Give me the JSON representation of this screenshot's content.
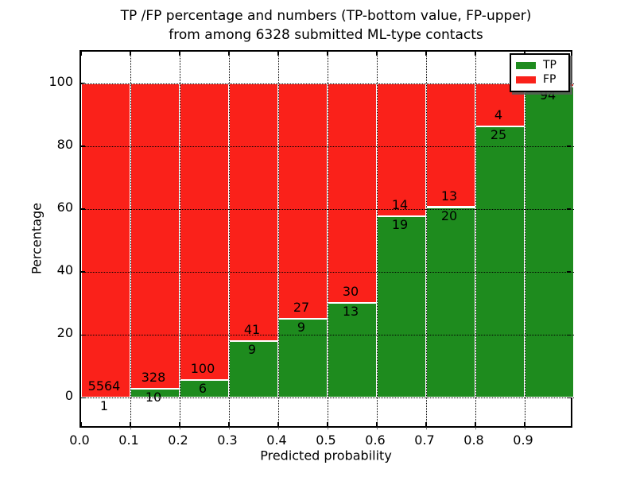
{
  "title_line1": "TP /FP percentage and numbers (TP-bottom value, FP-upper)",
  "title_line2": "from among 6328 submitted ML-type contacts",
  "chart_data": {
    "type": "bar",
    "stacked": true,
    "title": "TP /FP percentage and numbers (TP-bottom value, FP-upper) from among 6328 submitted ML-type contacts",
    "xlabel": "Predicted probability",
    "ylabel": "Percentage",
    "xlim": [
      0.0,
      1.0
    ],
    "ylim": [
      -10,
      110
    ],
    "x_tick_labels": [
      "0.0",
      "0.1",
      "0.2",
      "0.3",
      "0.4",
      "0.5",
      "0.6",
      "0.7",
      "0.8",
      "0.9"
    ],
    "x_tick_values": [
      0.0,
      0.1,
      0.2,
      0.3,
      0.4,
      0.5,
      0.6,
      0.7,
      0.8,
      0.9
    ],
    "y_tick_values": [
      0,
      20,
      40,
      60,
      80,
      100
    ],
    "grid": "dotted both axes",
    "bin_width": 0.1,
    "bar_edge_color": "#ffffff",
    "legend_position": "upper right",
    "series": [
      {
        "name": "TP",
        "color": "#1e8b1e",
        "pct": [
          0.02,
          2.96,
          5.66,
          18.0,
          25.0,
          30.23,
          57.58,
          60.61,
          86.21,
          98.95
        ],
        "counts": [
          1,
          10,
          6,
          9,
          9,
          13,
          19,
          20,
          25,
          94
        ]
      },
      {
        "name": "FP",
        "color": "#fa211a",
        "pct": [
          99.98,
          97.04,
          94.34,
          82.0,
          75.0,
          69.77,
          42.42,
          39.39,
          13.79,
          1.05
        ],
        "counts": [
          5564,
          328,
          100,
          41,
          27,
          30,
          14,
          13,
          4,
          null
        ]
      }
    ]
  }
}
